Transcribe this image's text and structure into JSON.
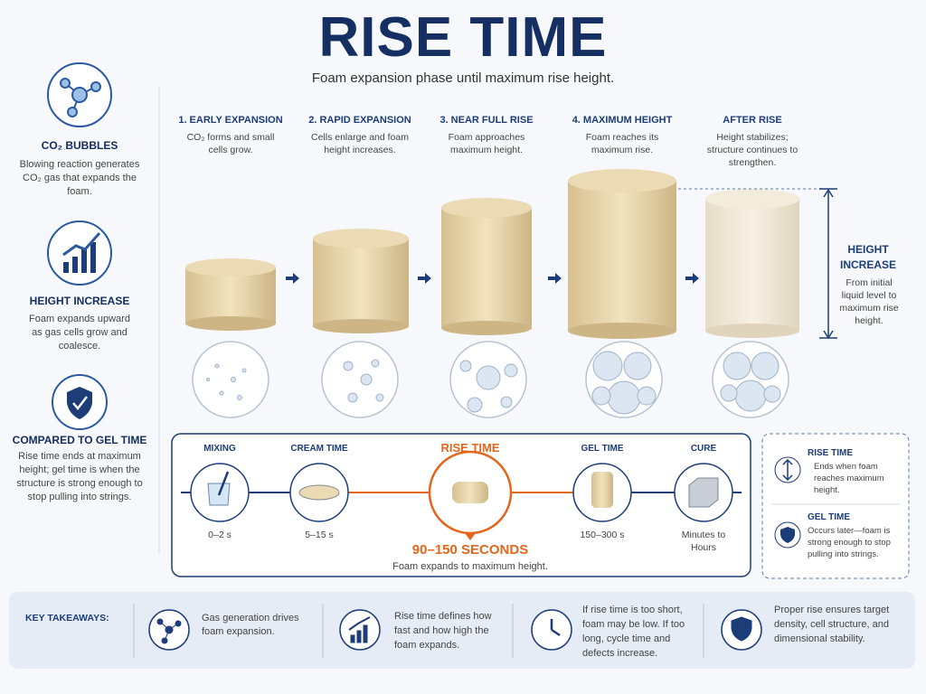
{
  "header": {
    "title": "RISE TIME",
    "subtitle": "Foam expansion phase until maximum rise height."
  },
  "sidebar": [
    {
      "title": "CO₂ BUBBLES",
      "text": "Blowing reaction generates CO₂ gas that expands the foam."
    },
    {
      "title": "HEIGHT INCREASE",
      "text": "Foam expands upward as gas cells grow and coalesce."
    },
    {
      "title": "COMPARED TO GEL TIME",
      "text": "Rise time ends at maximum height; gel time is when the structure is strong enough to stop pulling into strings."
    }
  ],
  "stages": [
    {
      "title": "1. EARLY EXPANSION",
      "text": "CO₂ forms and small cells grow."
    },
    {
      "title": "2. RAPID EXPANSION",
      "text": "Cells enlarge and foam height increases."
    },
    {
      "title": "3. NEAR FULL RISE",
      "text": "Foam approaches maximum height."
    },
    {
      "title": "4. MAXIMUM HEIGHT",
      "text": "Foam reaches its maximum rise."
    },
    {
      "title": "AFTER RISE",
      "text": "Height stabilizes; structure continues to strengthen."
    }
  ],
  "height_note": {
    "title": "HEIGHT INCREASE",
    "text": "From initial liquid level to maximum rise height."
  },
  "timeline": {
    "steps": [
      {
        "label": "MIXING",
        "time": "0–2 s"
      },
      {
        "label": "CREAM TIME",
        "time": "5–15 s"
      },
      {
        "label": "RISE TIME",
        "time": "90–150 SECONDS",
        "note": "Foam expands to maximum height."
      },
      {
        "label": "GEL TIME",
        "time": "150–300 s"
      },
      {
        "label": "CURE",
        "time": "Minutes to Hours"
      }
    ]
  },
  "legend": [
    {
      "title": "RISE TIME",
      "text": "Ends when foam reaches maximum height."
    },
    {
      "title": "GEL TIME",
      "text": "Occurs later—foam is strong enough to stop pulling into strings."
    }
  ],
  "takeaways": {
    "label": "KEY TAKEAWAYS:",
    "items": [
      "Gas generation drives foam expansion.",
      "Rise time defines how fast and how high the foam expands.",
      "If rise time is too short, foam may be low. If too long, cycle time and defects increase.",
      "Proper rise ensures target density, cell structure, and dimensional stability."
    ]
  }
}
